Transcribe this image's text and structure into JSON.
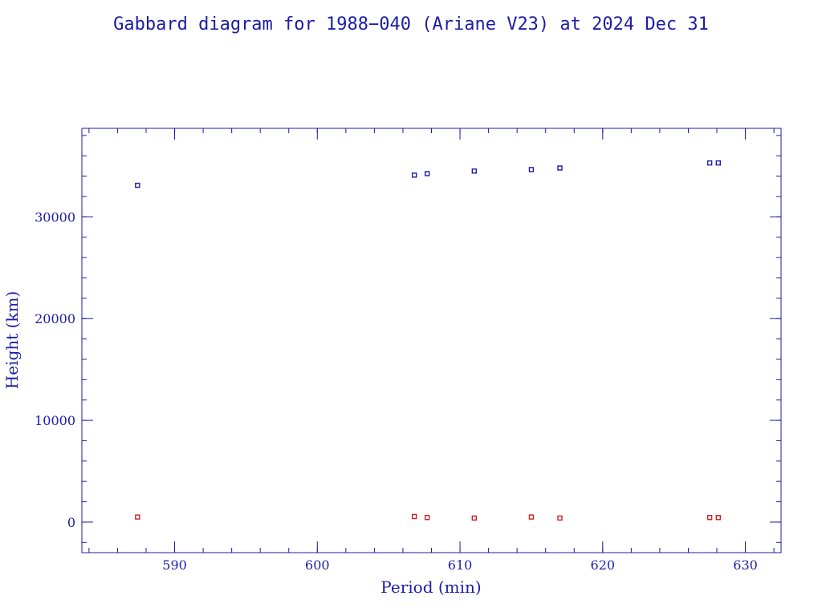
{
  "colors": {
    "axis": "#1c1ca8",
    "apogee": "#1c1ca8",
    "perigee": "#cc2222"
  },
  "chart_data": {
    "type": "scatter",
    "title": "Gabbard diagram for 1988−040 (Ariane V23) at 2024 Dec 31",
    "xlabel": "Period (min)",
    "ylabel": "Height (km)",
    "xlim": [
      583.5,
      632.5
    ],
    "ylim": [
      -3000,
      38700
    ],
    "x_ticks": [
      590,
      600,
      610,
      620,
      630
    ],
    "y_ticks": [
      0,
      10000,
      20000,
      30000
    ],
    "x_minor_step": 2,
    "y_minor_step": 2000,
    "grid": false,
    "legend": "none",
    "series": [
      {
        "color": "#1c1ca8",
        "points": [
          [
            587.4,
            33100
          ],
          [
            606.8,
            34100
          ],
          [
            607.7,
            34250
          ],
          [
            611.0,
            34500
          ],
          [
            615.0,
            34650
          ],
          [
            617.0,
            34800
          ],
          [
            627.5,
            35300
          ],
          [
            628.1,
            35300
          ]
        ]
      },
      {
        "color": "#cc2222",
        "points": [
          [
            587.4,
            500
          ],
          [
            606.8,
            550
          ],
          [
            607.7,
            450
          ],
          [
            611.0,
            400
          ],
          [
            615.0,
            500
          ],
          [
            617.0,
            400
          ],
          [
            627.5,
            450
          ],
          [
            628.1,
            450
          ]
        ]
      }
    ]
  }
}
